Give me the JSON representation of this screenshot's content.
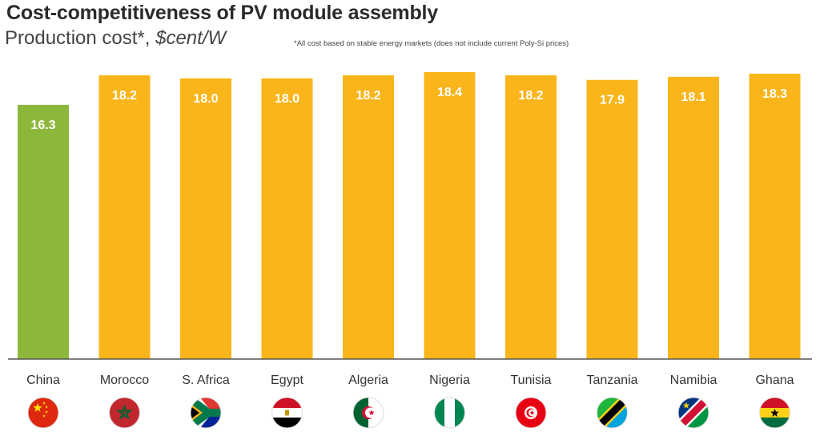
{
  "title": "Cost-competitiveness of PV module assembly",
  "subtitle": {
    "text": "Production cost*, ",
    "unit": "$cent/W"
  },
  "footnote": "*All cost based on stable energy markets (does not include current Poly-Si prices)",
  "colors": {
    "china": "#8db73a",
    "others": "#f9b51a",
    "value_label": "#ffffff",
    "axis": "#555555"
  },
  "chart_data": {
    "type": "bar",
    "title": "Cost-competitiveness of PV module assembly",
    "ylabel": "Production cost*, $cent/W",
    "categories": [
      "China",
      "Morocco",
      "S. Africa",
      "Egypt",
      "Algeria",
      "Nigeria",
      "Tunisia",
      "Tanzania",
      "Namibia",
      "Ghana"
    ],
    "values": [
      16.3,
      18.2,
      18.0,
      18.0,
      18.2,
      18.4,
      18.2,
      17.9,
      18.1,
      18.3
    ],
    "value_labels": [
      "16.3",
      "18.2",
      "18.0",
      "18.0",
      "18.2",
      "18.4",
      "18.2",
      "17.9",
      "18.1",
      "18.3"
    ],
    "flags": [
      "china-flag-icon",
      "morocco-flag-icon",
      "south-africa-flag-icon",
      "egypt-flag-icon",
      "algeria-flag-icon",
      "nigeria-flag-icon",
      "tunisia-flag-icon",
      "tanzania-flag-icon",
      "namibia-flag-icon",
      "ghana-flag-icon"
    ],
    "ylim": [
      0,
      18.4
    ],
    "grid": false,
    "legend": "none"
  }
}
